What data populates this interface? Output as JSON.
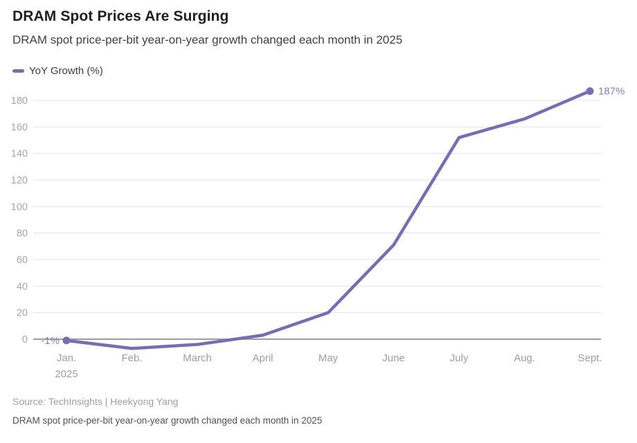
{
  "header": {
    "title": "DRAM Spot Prices Are Surging",
    "subtitle": "DRAM spot price-per-bit year-on-year growth changed each month in 2025"
  },
  "legend": {
    "label": "YoY Growth (%)"
  },
  "chart_data": {
    "type": "line",
    "title": "DRAM Spot Prices Are Surging",
    "subtitle": "DRAM spot price-per-bit year-on-year growth changed each month in 2025",
    "categories": [
      "Jan.",
      "Feb.",
      "March",
      "April",
      "May",
      "June",
      "July",
      "Aug.",
      "Sept."
    ],
    "x_sub_label": {
      "index": 0,
      "text": "2025"
    },
    "series": [
      {
        "name": "YoY Growth (%)",
        "color": "#7b6ab7",
        "values": [
          -1,
          -7,
          -4,
          3,
          20,
          71,
          152,
          166,
          187
        ]
      }
    ],
    "point_labels": {
      "first": "-1%",
      "last": "187%"
    },
    "yticks": [
      0,
      20,
      40,
      60,
      80,
      100,
      120,
      140,
      160,
      180
    ],
    "ylim": [
      -10,
      190
    ],
    "grid": "horizontal",
    "zero_line": true,
    "legend_position": "top-left",
    "xlabel": "",
    "ylabel": ""
  },
  "footer": {
    "source": "Source: TechInsights | Heekyong Yang",
    "caption": "DRAM spot price-per-bit year-on-year growth changed each month in 2025"
  },
  "colors": {
    "line": "#7b6ab7",
    "point_label": "#877bc8",
    "grid": "#e2e2e2",
    "zero_line": "#9c9c9c",
    "tick_label": "#a5a5a5",
    "month_label": "#9d9d9d"
  }
}
